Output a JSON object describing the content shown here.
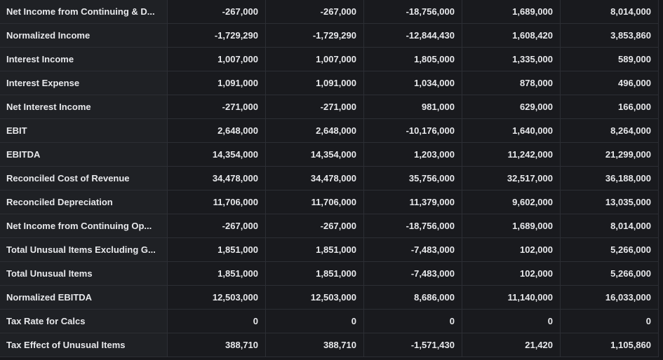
{
  "table": {
    "rows": [
      [
        "Net Income from Continuing & D...",
        "-267,000",
        "-267,000",
        "-18,756,000",
        "1,689,000",
        "8,014,000"
      ],
      [
        "Normalized Income",
        "-1,729,290",
        "-1,729,290",
        "-12,844,430",
        "1,608,420",
        "3,853,860"
      ],
      [
        "Interest Income",
        "1,007,000",
        "1,007,000",
        "1,805,000",
        "1,335,000",
        "589,000"
      ],
      [
        "Interest Expense",
        "1,091,000",
        "1,091,000",
        "1,034,000",
        "878,000",
        "496,000"
      ],
      [
        "Net Interest Income",
        "-271,000",
        "-271,000",
        "981,000",
        "629,000",
        "166,000"
      ],
      [
        "EBIT",
        "2,648,000",
        "2,648,000",
        "-10,176,000",
        "1,640,000",
        "8,264,000"
      ],
      [
        "EBITDA",
        "14,354,000",
        "14,354,000",
        "1,203,000",
        "11,242,000",
        "21,299,000"
      ],
      [
        "Reconciled Cost of Revenue",
        "34,478,000",
        "34,478,000",
        "35,756,000",
        "32,517,000",
        "36,188,000"
      ],
      [
        "Reconciled Depreciation",
        "11,706,000",
        "11,706,000",
        "11,379,000",
        "9,602,000",
        "13,035,000"
      ],
      [
        "Net Income from Continuing Op...",
        "-267,000",
        "-267,000",
        "-18,756,000",
        "1,689,000",
        "8,014,000"
      ],
      [
        "Total Unusual Items Excluding G...",
        "1,851,000",
        "1,851,000",
        "-7,483,000",
        "102,000",
        "5,266,000"
      ],
      [
        "Total Unusual Items",
        "1,851,000",
        "1,851,000",
        "-7,483,000",
        "102,000",
        "5,266,000"
      ],
      [
        "Normalized EBITDA",
        "12,503,000",
        "12,503,000",
        "8,686,000",
        "11,140,000",
        "16,033,000"
      ],
      [
        "Tax Rate for Calcs",
        "0",
        "0",
        "0",
        "0",
        "0"
      ],
      [
        "Tax Effect of Unusual Items",
        "388,710",
        "388,710",
        "-1,571,430",
        "21,420",
        "1,105,860"
      ]
    ]
  }
}
